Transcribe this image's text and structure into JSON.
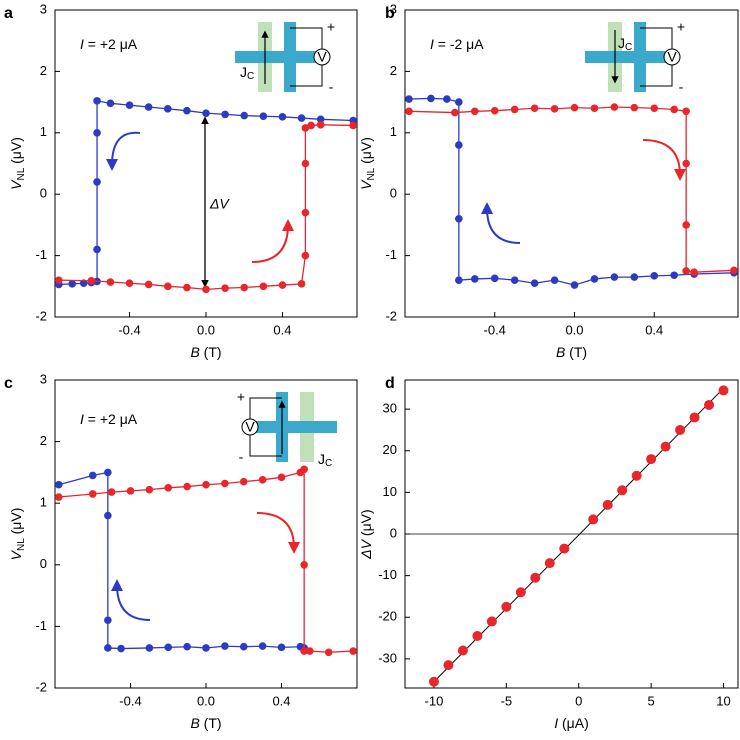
{
  "chart_data": [
    {
      "type": "line",
      "panel": "a",
      "annotation": {
        "var": "I",
        "text": " = +2 μA"
      },
      "inset": {
        "current": "J",
        "current_sub": "C",
        "meter": "V",
        "plus": "+",
        "minus": "-"
      },
      "delta_label": "ΔV",
      "xlabel": {
        "main": "B",
        "unit": " (T)"
      },
      "ylabel": {
        "main": "V",
        "sub": "NL",
        "unit": " (μV)"
      },
      "xlim": [
        -0.79,
        0.79
      ],
      "ylim": [
        -2,
        3
      ],
      "xticks": [
        -0.4,
        {
          "value": 0,
          "label": "0.0"
        },
        0.4
      ],
      "yticks": [
        -2,
        -1,
        0,
        1,
        2,
        3
      ],
      "series": [
        {
          "color": "#2b3bc4",
          "x": [
            -0.77,
            -0.7,
            -0.64,
            -0.6,
            -0.57,
            -0.57,
            -0.57,
            -0.57,
            -0.57,
            -0.5,
            -0.4,
            -0.3,
            -0.2,
            -0.1,
            0,
            0.1,
            0.2,
            0.3,
            0.4,
            0.5,
            0.6,
            0.77
          ],
          "values": [
            -1.47,
            -1.46,
            -1.45,
            -1.44,
            -1.42,
            -0.9,
            0.2,
            1.0,
            1.52,
            1.48,
            1.45,
            1.42,
            1.39,
            1.36,
            1.32,
            1.3,
            1.28,
            1.27,
            1.26,
            1.24,
            1.22,
            1.2
          ]
        },
        {
          "color": "#e8262c",
          "x": [
            -0.77,
            -0.6,
            -0.5,
            -0.4,
            -0.3,
            -0.2,
            -0.1,
            0,
            0.1,
            0.2,
            0.3,
            0.4,
            0.5,
            0.52,
            0.52,
            0.52,
            0.52,
            0.55,
            0.6,
            0.77
          ],
          "values": [
            -1.4,
            -1.41,
            -1.43,
            -1.45,
            -1.47,
            -1.5,
            -1.52,
            -1.55,
            -1.53,
            -1.52,
            -1.5,
            -1.48,
            -1.46,
            -1.0,
            -0.3,
            0.5,
            1.08,
            1.12,
            1.13,
            1.12
          ]
        }
      ]
    },
    {
      "type": "line",
      "panel": "b",
      "annotation": {
        "var": "I",
        "text": " = -2 μA"
      },
      "inset": {
        "current": "J",
        "current_sub": "C",
        "meter": "V",
        "plus": "+",
        "minus": "-"
      },
      "xlabel": {
        "main": "B",
        "unit": " (T)"
      },
      "ylabel": {
        "main": "V",
        "sub": "NL",
        "unit": " (μV)"
      },
      "xlim": [
        -0.85,
        0.82
      ],
      "ylim": [
        -2,
        3
      ],
      "xticks": [
        -0.4,
        {
          "value": 0,
          "label": "0.0"
        },
        0.4
      ],
      "yticks": [
        -2,
        -1,
        0,
        1,
        2,
        3
      ],
      "series": [
        {
          "color": "#2b3bc4",
          "x": [
            -0.83,
            -0.72,
            -0.64,
            -0.58,
            -0.58,
            -0.58,
            -0.58,
            -0.5,
            -0.4,
            -0.3,
            -0.2,
            -0.1,
            0,
            0.1,
            0.2,
            0.3,
            0.4,
            0.5,
            0.6,
            0.8
          ],
          "values": [
            1.55,
            1.56,
            1.55,
            1.5,
            0.8,
            -0.4,
            -1.4,
            -1.38,
            -1.37,
            -1.4,
            -1.45,
            -1.4,
            -1.48,
            -1.38,
            -1.35,
            -1.35,
            -1.33,
            -1.32,
            -1.3,
            -1.28
          ]
        },
        {
          "color": "#e8262c",
          "x": [
            -0.83,
            -0.6,
            -0.5,
            -0.4,
            -0.3,
            -0.2,
            -0.1,
            0,
            0.1,
            0.2,
            0.3,
            0.4,
            0.5,
            0.56,
            0.56,
            0.56,
            0.56,
            0.6,
            0.8
          ],
          "values": [
            1.35,
            1.33,
            1.35,
            1.36,
            1.38,
            1.4,
            1.39,
            1.41,
            1.4,
            1.42,
            1.41,
            1.4,
            1.38,
            1.35,
            0.5,
            -0.5,
            -1.25,
            -1.27,
            -1.24
          ]
        }
      ]
    },
    {
      "type": "line",
      "panel": "c",
      "annotation": {
        "var": "I",
        "text": " = +2 μA"
      },
      "inset": {
        "current": "J",
        "current_sub": "C",
        "meter": "V",
        "plus": "+",
        "minus": "-"
      },
      "xlabel": {
        "main": "B",
        "unit": " (T)"
      },
      "ylabel": {
        "main": "V",
        "sub": "NL",
        "unit": " (μV)"
      },
      "xlim": [
        -0.8,
        0.8
      ],
      "ylim": [
        -2,
        3
      ],
      "xticks": [
        -0.4,
        {
          "value": 0,
          "label": "0.0"
        },
        0.4
      ],
      "yticks": [
        -2,
        -1,
        0,
        1,
        2,
        3
      ],
      "series": [
        {
          "color": "#2b3bc4",
          "x": [
            -0.78,
            -0.6,
            -0.52,
            -0.52,
            -0.52,
            -0.52,
            -0.45,
            -0.3,
            -0.2,
            -0.1,
            0,
            0.1,
            0.2,
            0.3,
            0.4,
            0.5,
            0.52
          ],
          "values": [
            1.3,
            1.45,
            1.5,
            0.8,
            -0.9,
            -1.35,
            -1.36,
            -1.35,
            -1.34,
            -1.33,
            -1.35,
            -1.32,
            -1.33,
            -1.32,
            -1.34,
            -1.33,
            -1.35
          ]
        },
        {
          "color": "#e8262c",
          "x": [
            -0.78,
            -0.6,
            -0.5,
            -0.4,
            -0.3,
            -0.2,
            -0.1,
            0,
            0.1,
            0.2,
            0.3,
            0.4,
            0.5,
            0.52,
            0.52,
            0.52,
            0.55,
            0.65,
            0.78
          ],
          "values": [
            1.1,
            1.15,
            1.18,
            1.2,
            1.22,
            1.25,
            1.27,
            1.3,
            1.32,
            1.35,
            1.38,
            1.42,
            1.5,
            1.55,
            0,
            -1.4,
            -1.4,
            -1.42,
            -1.4
          ]
        }
      ]
    },
    {
      "type": "scatter",
      "panel": "d",
      "xlabel": {
        "main": "I",
        "unit": " (μA)"
      },
      "ylabel": {
        "main": "ΔV",
        "unit": " (μV)"
      },
      "xlim": [
        -12,
        11
      ],
      "ylim": [
        -37,
        37
      ],
      "xticks": [
        -10,
        -5,
        0,
        5,
        10
      ],
      "yticks": [
        -30,
        -20,
        -10,
        0,
        10,
        20,
        30
      ],
      "series": [
        {
          "color": "#e8262c",
          "marker": true,
          "x": [
            -10,
            -9,
            -8,
            -7,
            -6,
            -5,
            -4,
            -3,
            -2,
            -1,
            1,
            2,
            3,
            4,
            5,
            6,
            7,
            8,
            9,
            10
          ],
          "values": [
            -35.5,
            -31.5,
            -28,
            -24.5,
            -21,
            -17.5,
            -14,
            -10.5,
            -7,
            -3.5,
            3.5,
            7,
            10.5,
            14,
            18,
            21,
            25,
            28,
            31,
            34.5
          ]
        },
        {
          "color": "#000000",
          "line": true,
          "x": [
            -10,
            10
          ],
          "values": [
            -35.5,
            35
          ]
        }
      ]
    }
  ]
}
